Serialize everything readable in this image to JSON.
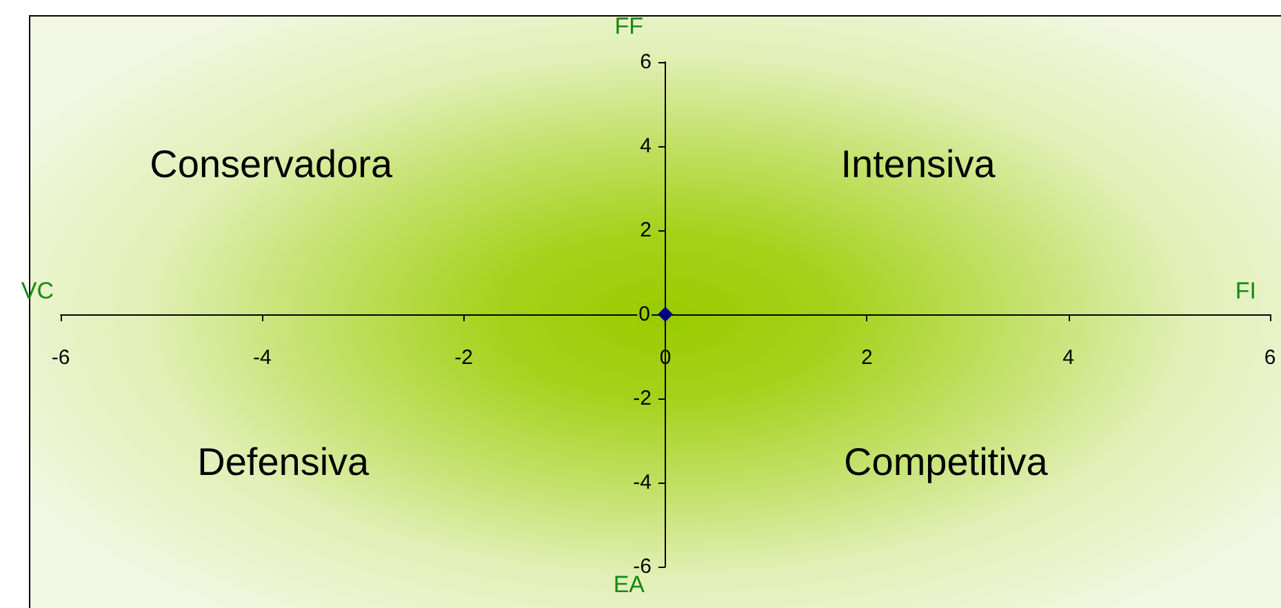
{
  "chart_data": {
    "type": "scatter",
    "x": [
      0
    ],
    "values": [
      0
    ],
    "color": "#000080",
    "marker": "diamond",
    "xlim": [
      -6,
      6
    ],
    "ylim": [
      -6,
      6
    ],
    "xticks": [
      -6,
      -4,
      -2,
      0,
      2,
      4,
      6
    ],
    "yticks": [
      -6,
      -4,
      -2,
      0,
      2,
      4,
      6
    ],
    "annotations": [
      "FF",
      "EA",
      "VC",
      "FI",
      "Conservadora",
      "Intensiva",
      "Defensiva",
      "Competitiva"
    ]
  }
}
